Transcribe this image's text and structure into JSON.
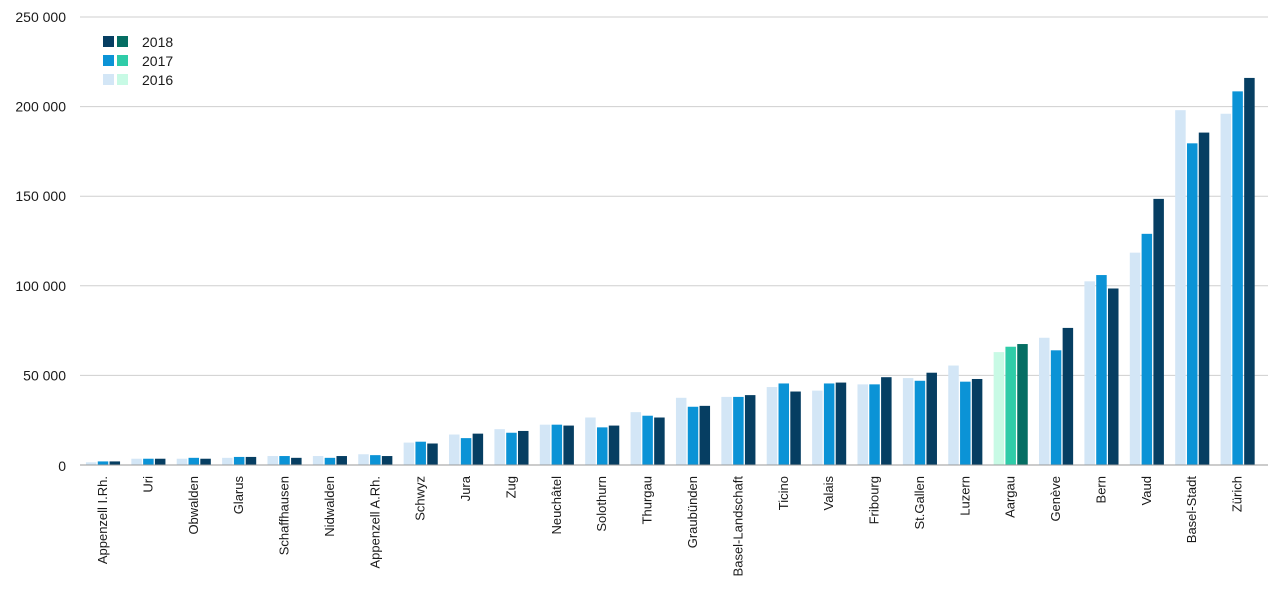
{
  "chart_data": {
    "type": "bar",
    "title": "",
    "xlabel": "",
    "ylabel": "",
    "ylim": [
      0,
      250000
    ],
    "y_ticks": [
      0,
      50000,
      100000,
      150000,
      200000,
      250000
    ],
    "y_tick_labels": [
      "0",
      "50 000",
      "100 000",
      "150 000",
      "200 000",
      "250 000"
    ],
    "grid": "horizontal",
    "legend_position": "top-left",
    "highlight_category": "Aargau",
    "categories": [
      "Appenzell I.Rh.",
      "Uri",
      "Obwalden",
      "Glarus",
      "Schaffhausen",
      "Nidwalden",
      "Appenzell A.Rh.",
      "Schwyz",
      "Jura",
      "Zug",
      "Neuchâtel",
      "Solothurn",
      "Thurgau",
      "Graubünden",
      "Basel-Landschaft",
      "Ticino",
      "Valais",
      "Fribourg",
      "St.Gallen",
      "Luzern",
      "Aargau",
      "Genève",
      "Bern",
      "Vaud",
      "Basel-Stadt",
      "Zürich"
    ],
    "series": [
      {
        "name": "2016",
        "color": "#d3e6f6",
        "highlight_color": "#c8fae5",
        "values": [
          1500,
          3500,
          3500,
          4000,
          5000,
          5000,
          6000,
          12500,
          17000,
          20000,
          22500,
          26500,
          29500,
          37500,
          38000,
          43500,
          41500,
          45000,
          48500,
          55500,
          63000,
          71000,
          102500,
          118500,
          198000,
          196000
        ]
      },
      {
        "name": "2017",
        "color": "#0b93d6",
        "highlight_color": "#2fcca8",
        "values": [
          2000,
          3500,
          4000,
          4500,
          5000,
          4000,
          5500,
          13000,
          15000,
          18000,
          22500,
          21000,
          27500,
          32500,
          38000,
          45500,
          45500,
          45000,
          47000,
          46500,
          66000,
          64000,
          106000,
          129000,
          179500,
          208500
        ]
      },
      {
        "name": "2018",
        "color": "#063e62",
        "highlight_color": "#056e63",
        "values": [
          2000,
          3500,
          3500,
          4500,
          4000,
          5000,
          5000,
          12000,
          17500,
          19000,
          22000,
          22000,
          26500,
          33000,
          39000,
          41000,
          46000,
          49000,
          51500,
          48000,
          67500,
          76500,
          98500,
          148500,
          185500,
          216000
        ]
      }
    ],
    "legend": [
      {
        "label": "2018",
        "swatches": [
          "#063e62",
          "#056e63"
        ]
      },
      {
        "label": "2017",
        "swatches": [
          "#0b93d6",
          "#2fcca8"
        ]
      },
      {
        "label": "2016",
        "swatches": [
          "#d3e6f6",
          "#c8fae5"
        ]
      }
    ]
  }
}
